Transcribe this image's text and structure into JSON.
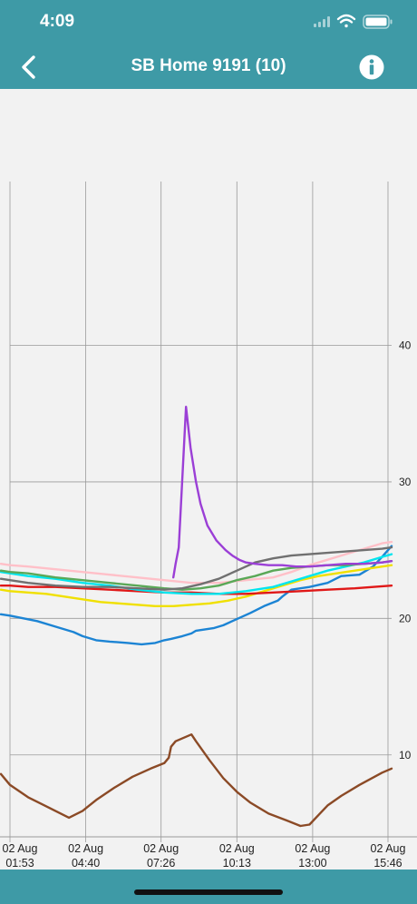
{
  "status_bar": {
    "time": "4:09",
    "icons": [
      "signal-icon",
      "wifi-icon",
      "battery-icon"
    ]
  },
  "nav": {
    "title": "SB Home 9191 (10)",
    "back_icon": "chevron-left-icon",
    "info_icon": "info-icon"
  },
  "colors": {
    "bar": "#3e9aa6",
    "background": "#f2f2f2",
    "grid": "#9a9a9a"
  },
  "chart_data": {
    "type": "line",
    "title": "",
    "xlabel": "",
    "ylabel": "",
    "y_axis_position": "right",
    "ylim": [
      4,
      52
    ],
    "yticks": [
      10,
      20,
      30,
      40
    ],
    "xlim": [
      0,
      841
    ],
    "grid": true,
    "legend": "none",
    "x_ticks": [
      {
        "x": 0,
        "date": "02 Aug",
        "time": "01:53"
      },
      {
        "x": 167,
        "date": "02 Aug",
        "time": "04:40"
      },
      {
        "x": 333,
        "date": "02 Aug",
        "time": "07:26"
      },
      {
        "x": 500,
        "date": "02 Aug",
        "time": "10:13"
      },
      {
        "x": 667,
        "date": "02 Aug",
        "time": "13:00"
      },
      {
        "x": 833,
        "date": "02 Aug",
        "time": "15:46"
      }
    ],
    "series": [
      {
        "color": "#8b4a26",
        "x": [
          -20,
          0,
          40,
          100,
          130,
          160,
          190,
          230,
          270,
          310,
          340,
          350,
          355,
          365,
          400,
          410,
          440,
          470,
          500,
          530,
          570,
          610,
          640,
          660,
          680,
          700,
          730,
          770,
          820,
          841
        ],
        "y": [
          8.6,
          7.8,
          6.9,
          5.9,
          5.4,
          5.9,
          6.7,
          7.6,
          8.4,
          9.0,
          9.4,
          9.8,
          10.6,
          11.0,
          11.5,
          11.0,
          9.6,
          8.3,
          7.3,
          6.5,
          5.7,
          5.2,
          4.8,
          4.9,
          5.6,
          6.3,
          7.0,
          7.8,
          8.7,
          9.0
        ]
      },
      {
        "color": "#1c84d4",
        "x": [
          -20,
          0,
          30,
          60,
          100,
          140,
          160,
          190,
          220,
          260,
          290,
          320,
          340,
          355,
          380,
          400,
          410,
          430,
          450,
          470,
          490,
          510,
          530,
          560,
          590,
          600,
          620,
          660,
          700,
          730,
          770,
          800,
          820,
          841
        ],
        "y": [
          20.3,
          20.2,
          20.0,
          19.8,
          19.4,
          19.0,
          18.7,
          18.4,
          18.3,
          18.2,
          18.1,
          18.2,
          18.4,
          18.5,
          18.7,
          18.9,
          19.1,
          19.2,
          19.3,
          19.5,
          19.8,
          20.1,
          20.4,
          20.9,
          21.3,
          21.6,
          22.1,
          22.3,
          22.6,
          23.1,
          23.2,
          23.8,
          24.5,
          25.3
        ]
      },
      {
        "color": "#f0e000",
        "x": [
          -20,
          0,
          40,
          80,
          120,
          160,
          200,
          240,
          280,
          320,
          360,
          400,
          440,
          480,
          520,
          560,
          600,
          640,
          680,
          720,
          760,
          800,
          841
        ],
        "y": [
          22.1,
          22.0,
          21.9,
          21.8,
          21.6,
          21.4,
          21.2,
          21.1,
          21.0,
          20.9,
          20.9,
          21.0,
          21.1,
          21.3,
          21.6,
          22.0,
          22.4,
          22.8,
          23.1,
          23.3,
          23.5,
          23.7,
          23.9
        ]
      },
      {
        "color": "#e01818",
        "x": [
          -20,
          0,
          40,
          100,
          160,
          220,
          280,
          340,
          400,
          460,
          520,
          580,
          640,
          700,
          760,
          800,
          841
        ],
        "y": [
          22.4,
          22.4,
          22.3,
          22.3,
          22.2,
          22.1,
          22.0,
          21.9,
          21.9,
          21.8,
          21.8,
          21.9,
          22.0,
          22.1,
          22.2,
          22.3,
          22.4
        ]
      },
      {
        "color": "#ffc0c8",
        "x": [
          -20,
          0,
          40,
          100,
          160,
          220,
          280,
          340,
          400,
          460,
          520,
          580,
          620,
          660,
          700,
          740,
          780,
          820,
          841
        ],
        "y": [
          24.0,
          23.9,
          23.8,
          23.6,
          23.4,
          23.2,
          23.0,
          22.8,
          22.6,
          22.6,
          22.8,
          23.0,
          23.4,
          23.9,
          24.3,
          24.7,
          25.1,
          25.5,
          25.6
        ]
      },
      {
        "color": "#00e5ee",
        "x": [
          -20,
          0,
          40,
          100,
          160,
          220,
          280,
          340,
          400,
          460,
          520,
          580,
          620,
          660,
          700,
          740,
          780,
          820,
          841
        ],
        "y": [
          23.4,
          23.3,
          23.1,
          22.9,
          22.6,
          22.4,
          22.1,
          21.9,
          21.8,
          21.8,
          22.0,
          22.3,
          22.7,
          23.1,
          23.5,
          23.8,
          24.1,
          24.5,
          24.7
        ]
      },
      {
        "color": "#5aa857",
        "x": [
          -20,
          0,
          40,
          100,
          160,
          220,
          280,
          340,
          380,
          420,
          460,
          500,
          540,
          580,
          620,
          660,
          700,
          740,
          780,
          820,
          841
        ],
        "y": [
          23.5,
          23.4,
          23.3,
          23.0,
          22.8,
          22.6,
          22.4,
          22.2,
          22.1,
          22.2,
          22.4,
          22.8,
          23.1,
          23.5,
          23.7,
          23.8,
          23.9,
          23.9,
          24.0,
          24.1,
          24.2
        ]
      },
      {
        "color": "#707070",
        "x": [
          -20,
          0,
          40,
          100,
          160,
          220,
          280,
          340,
          380,
          420,
          460,
          500,
          540,
          580,
          620,
          660,
          700,
          740,
          780,
          820,
          841
        ],
        "y": [
          22.9,
          22.8,
          22.6,
          22.4,
          22.3,
          22.3,
          22.2,
          22.1,
          22.2,
          22.5,
          22.9,
          23.5,
          24.1,
          24.4,
          24.6,
          24.7,
          24.8,
          24.9,
          25.0,
          25.1,
          25.2
        ]
      },
      {
        "color": "#9b3fd6",
        "x": [
          360,
          365,
          372,
          388,
          398,
          410,
          420,
          435,
          455,
          475,
          490,
          505,
          520,
          540,
          570,
          600,
          630,
          660,
          700,
          740,
          780,
          820,
          841
        ],
        "y": [
          23.0,
          24.0,
          25.2,
          35.5,
          32.5,
          30.0,
          28.4,
          26.8,
          25.7,
          25.0,
          24.6,
          24.3,
          24.1,
          24.0,
          23.9,
          23.9,
          23.8,
          23.8,
          23.9,
          24.0,
          24.0,
          24.1,
          24.2
        ]
      }
    ]
  }
}
